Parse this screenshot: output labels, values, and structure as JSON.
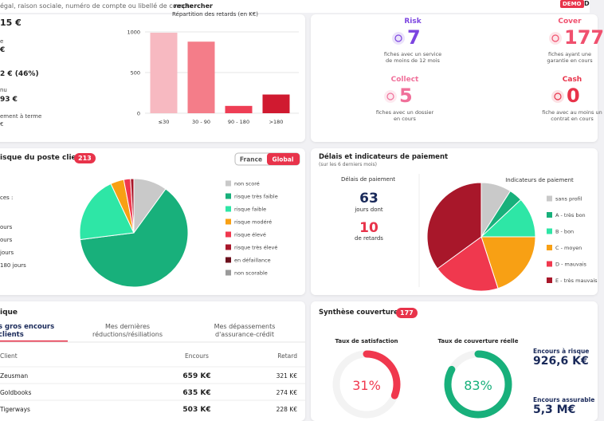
{
  "topbar": {
    "search_placeholder": "égal, raison sociale, numéro de compte ou libellé de compte",
    "search_button": "rechercher",
    "demo": "DEMO",
    "user": "D"
  },
  "summary": {
    "lines": [
      "15 €",
      "e",
      "€",
      "2 € (46%)",
      "nu",
      "93 €",
      "ement à terme",
      "€"
    ]
  },
  "delays_chart": {
    "type": "bar",
    "title": "Répartition des retards (en K€)",
    "categories": [
      "≤30",
      "30 - 90",
      "90 - 180",
      ">180"
    ],
    "values": [
      990,
      880,
      90,
      230
    ],
    "colors": [
      "#f7b9c1",
      "#f47d89",
      "#ee3e55",
      "#d01a30"
    ],
    "ylim": [
      0,
      1000
    ],
    "yticks": [
      0,
      500,
      1000
    ]
  },
  "services": [
    {
      "name": "Risk",
      "value": 7,
      "text": "fiches avec un service de moins de 12 mois",
      "color": "#7c45e0"
    },
    {
      "name": "Cover",
      "value": 177,
      "text": "fiches ayant une garantie en cours",
      "color": "#f0506e"
    },
    {
      "name": "Collect",
      "value": 5,
      "text": "fiches avec un dossier en cours",
      "color": "#f0709a"
    },
    {
      "name": "Cash",
      "value": 0,
      "text": "fiche avec au moins un contrat en cours",
      "color": "#e8334a"
    }
  ],
  "risk": {
    "title": "isque du poste clients",
    "count": 213,
    "toggle": [
      "France",
      "Global"
    ],
    "active": 1,
    "side_lines": [
      "ces :",
      "ours",
      "ours",
      "jours",
      "180 jours"
    ],
    "chart": {
      "type": "pie",
      "categories": [
        "non scoré",
        "risque très faible",
        "risque faible",
        "risque modéré",
        "risque élevé",
        "risque très élevé",
        "en défaillance",
        "non scorable"
      ],
      "values": [
        10,
        63,
        20,
        4,
        2,
        1,
        0,
        0
      ],
      "colors": [
        "#c9c9c9",
        "#18b07b",
        "#2ee6a6",
        "#f8a014",
        "#f0384e",
        "#a8172a",
        "#6b0f1c",
        "#9a9a9a"
      ]
    }
  },
  "payment": {
    "title": "Délais et indicateurs de paiement",
    "subtitle": "(sur les 6 derniers mois)",
    "delay_title": "Délais de paiement",
    "days": 63,
    "days_text": "jours dont",
    "late": 10,
    "late_text": "de retards",
    "chart": {
      "type": "pie",
      "title": "Indicateurs de paiement",
      "categories": [
        "sans profil",
        "A - très bon",
        "B - bon",
        "C - moyen",
        "D - mauvais",
        "E - très mauvais"
      ],
      "values": [
        9,
        4,
        12,
        20,
        20,
        35
      ],
      "colors": [
        "#c9c9c9",
        "#18b07b",
        "#2ee6a6",
        "#f8a014",
        "#f0384e",
        "#a8172a"
      ]
    }
  },
  "top_clients": {
    "title": "ique",
    "tabs": [
      "s gros encours clients",
      "Mes dernières réductions/résiliations",
      "Mes dépassements d'assurance-crédit"
    ],
    "columns": [
      "Client",
      "Encours",
      "Retard"
    ],
    "rows": [
      [
        "Zeusman",
        "659 K€",
        "321 K€"
      ],
      [
        "Goldbooks",
        "635 K€",
        "274 K€"
      ],
      [
        "Tigerways",
        "503 K€",
        "228 K€"
      ]
    ]
  },
  "coverage": {
    "title": "Synthèse couverture",
    "count": 177,
    "gauges": [
      {
        "type": "donut",
        "title": "Taux de satisfaction",
        "value": 31,
        "value_label": "31%",
        "color": "#f0384e"
      },
      {
        "type": "donut",
        "title": "Taux de couverture réelle",
        "value": 83,
        "value_label": "83%",
        "color": "#18b07b"
      }
    ],
    "kpis": [
      {
        "label": "Encours à risque",
        "value": "926,6 K€"
      },
      {
        "label": "Encours assurable",
        "value": "5,3 M€"
      }
    ]
  }
}
